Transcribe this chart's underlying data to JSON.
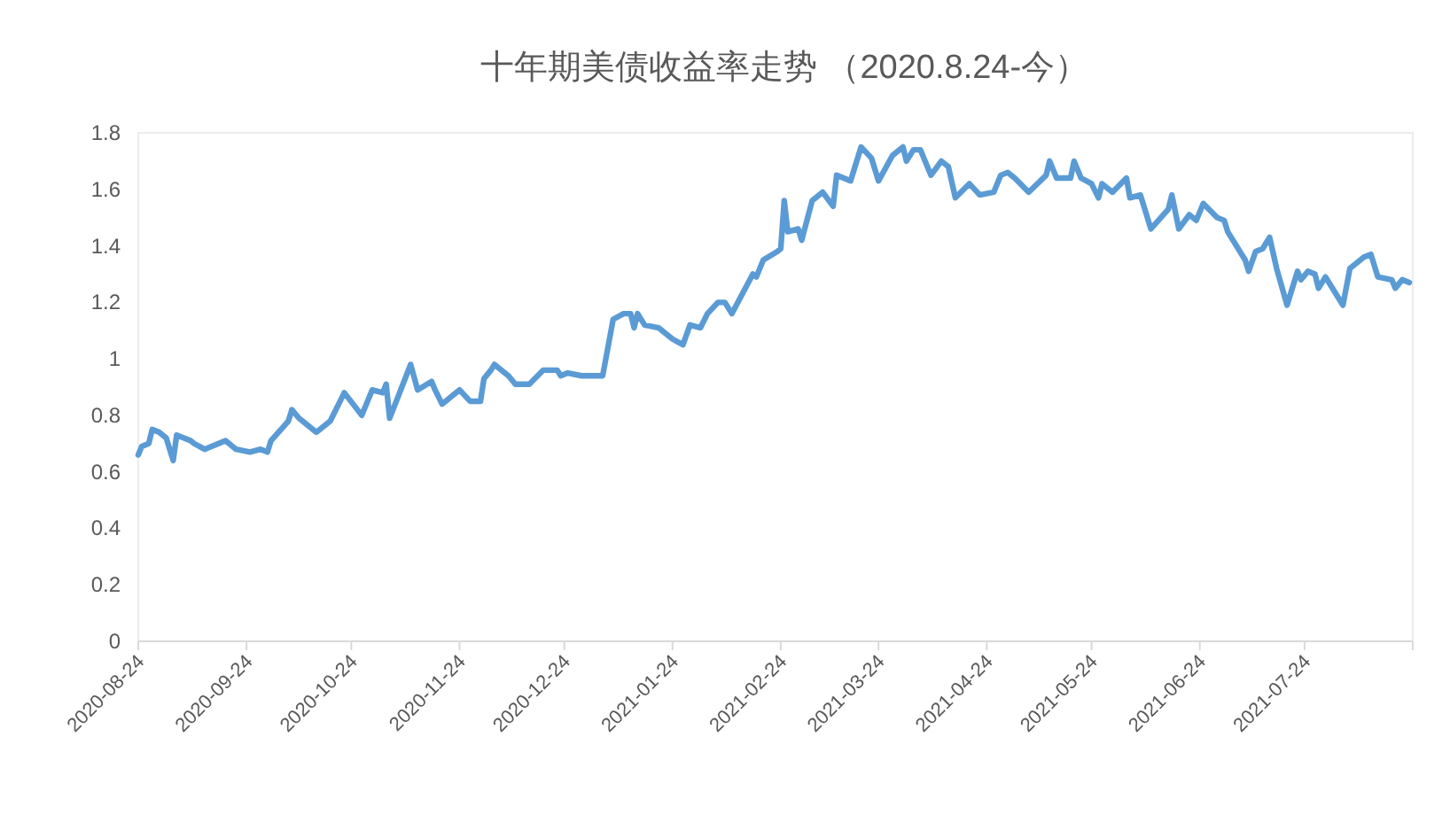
{
  "chart_data": {
    "type": "line",
    "title": "十年期美债收益率走势 （2020.8.24-今）",
    "x": [
      "2020-08-24",
      "2020-08-25",
      "2020-08-27",
      "2020-08-28",
      "2020-08-30",
      "2020-09-01",
      "2020-09-03",
      "2020-09-04",
      "2020-09-08",
      "2020-09-09",
      "2020-09-12",
      "2020-09-18",
      "2020-09-21",
      "2020-09-25",
      "2020-09-28",
      "2020-09-30",
      "2020-10-01",
      "2020-10-06",
      "2020-10-07",
      "2020-10-09",
      "2020-10-14",
      "2020-10-17",
      "2020-10-18",
      "2020-10-22",
      "2020-10-27",
      "2020-10-30",
      "2020-11-02",
      "2020-11-03",
      "2020-11-04",
      "2020-11-10",
      "2020-11-12",
      "2020-11-16",
      "2020-11-17",
      "2020-11-19",
      "2020-11-24",
      "2020-11-27",
      "2020-11-30",
      "2020-12-01",
      "2020-12-03",
      "2020-12-04",
      "2020-12-08",
      "2020-12-10",
      "2020-12-14",
      "2020-12-18",
      "2020-12-22",
      "2020-12-23",
      "2020-12-25",
      "2020-12-29",
      "2021-01-04",
      "2021-01-07",
      "2021-01-10",
      "2021-01-12",
      "2021-01-13",
      "2021-01-14",
      "2021-01-16",
      "2021-01-20",
      "2021-01-24",
      "2021-01-27",
      "2021-01-29",
      "2021-02-01",
      "2021-02-03",
      "2021-02-06",
      "2021-02-08",
      "2021-02-10",
      "2021-02-13",
      "2021-02-16",
      "2021-02-17",
      "2021-02-19",
      "2021-02-23",
      "2021-02-24",
      "2021-02-25",
      "2021-02-26",
      "2021-03-01",
      "2021-03-02",
      "2021-03-05",
      "2021-03-08",
      "2021-03-11",
      "2021-03-12",
      "2021-03-16",
      "2021-03-19",
      "2021-03-22",
      "2021-03-24",
      "2021-03-28",
      "2021-03-31",
      "2021-04-01",
      "2021-04-03",
      "2021-04-05",
      "2021-04-08",
      "2021-04-11",
      "2021-04-13",
      "2021-04-15",
      "2021-04-19",
      "2021-04-22",
      "2021-04-26",
      "2021-04-28",
      "2021-04-30",
      "2021-05-02",
      "2021-05-06",
      "2021-05-11",
      "2021-05-12",
      "2021-05-14",
      "2021-05-18",
      "2021-05-19",
      "2021-05-21",
      "2021-05-24",
      "2021-05-26",
      "2021-05-27",
      "2021-05-30",
      "2021-06-03",
      "2021-06-04",
      "2021-06-07",
      "2021-06-10",
      "2021-06-15",
      "2021-06-16",
      "2021-06-18",
      "2021-06-21",
      "2021-06-23",
      "2021-06-25",
      "2021-06-29",
      "2021-07-01",
      "2021-07-02",
      "2021-07-07",
      "2021-07-08",
      "2021-07-10",
      "2021-07-12",
      "2021-07-14",
      "2021-07-16",
      "2021-07-19",
      "2021-07-22",
      "2021-07-23",
      "2021-07-25",
      "2021-07-27",
      "2021-07-28",
      "2021-07-30",
      "2021-08-04",
      "2021-08-06",
      "2021-08-10",
      "2021-08-12",
      "2021-08-14",
      "2021-08-18",
      "2021-08-19",
      "2021-08-21",
      "2021-08-23"
    ],
    "series": [
      {
        "color": "#5b9bd5",
        "values": [
          0.66,
          0.69,
          0.7,
          0.75,
          0.74,
          0.72,
          0.64,
          0.73,
          0.71,
          0.7,
          0.68,
          0.71,
          0.68,
          0.67,
          0.68,
          0.67,
          0.71,
          0.78,
          0.82,
          0.79,
          0.74,
          0.77,
          0.78,
          0.88,
          0.8,
          0.89,
          0.88,
          0.91,
          0.79,
          0.98,
          0.89,
          0.92,
          0.89,
          0.84,
          0.89,
          0.85,
          0.85,
          0.93,
          0.96,
          0.98,
          0.94,
          0.91,
          0.91,
          0.96,
          0.96,
          0.94,
          0.95,
          0.94,
          0.94,
          1.14,
          1.16,
          1.16,
          1.11,
          1.16,
          1.12,
          1.11,
          1.07,
          1.05,
          1.12,
          1.11,
          1.16,
          1.2,
          1.2,
          1.16,
          1.23,
          1.3,
          1.29,
          1.35,
          1.38,
          1.39,
          1.56,
          1.45,
          1.46,
          1.42,
          1.56,
          1.59,
          1.54,
          1.65,
          1.63,
          1.75,
          1.71,
          1.63,
          1.72,
          1.75,
          1.7,
          1.74,
          1.74,
          1.65,
          1.7,
          1.68,
          1.57,
          1.62,
          1.58,
          1.59,
          1.65,
          1.66,
          1.64,
          1.59,
          1.65,
          1.7,
          1.64,
          1.64,
          1.7,
          1.64,
          1.62,
          1.57,
          1.62,
          1.59,
          1.64,
          1.57,
          1.58,
          1.46,
          1.53,
          1.58,
          1.46,
          1.51,
          1.49,
          1.55,
          1.5,
          1.49,
          1.45,
          1.35,
          1.31,
          1.38,
          1.39,
          1.43,
          1.32,
          1.19,
          1.31,
          1.28,
          1.31,
          1.3,
          1.25,
          1.29,
          1.19,
          1.32,
          1.36,
          1.37,
          1.29,
          1.28,
          1.25,
          1.28,
          1.27
        ]
      }
    ],
    "xlim": [
      "2020-08-24",
      "2021-08-24"
    ],
    "xticks": [
      "2020-08-24",
      "2020-09-24",
      "2020-10-24",
      "2020-11-24",
      "2020-12-24",
      "2021-01-24",
      "2021-02-24",
      "2021-03-24",
      "2021-04-24",
      "2021-05-24",
      "2021-06-24",
      "2021-07-24",
      {
        "value": "2021-08-24",
        "label": null
      }
    ],
    "ylim": [
      0,
      1.8
    ],
    "yticks": [
      0,
      0.2,
      0.4,
      0.6,
      0.8,
      1,
      1.2,
      1.4,
      1.6,
      1.8
    ],
    "grid": false,
    "marker": "none",
    "line_style": "solid"
  }
}
